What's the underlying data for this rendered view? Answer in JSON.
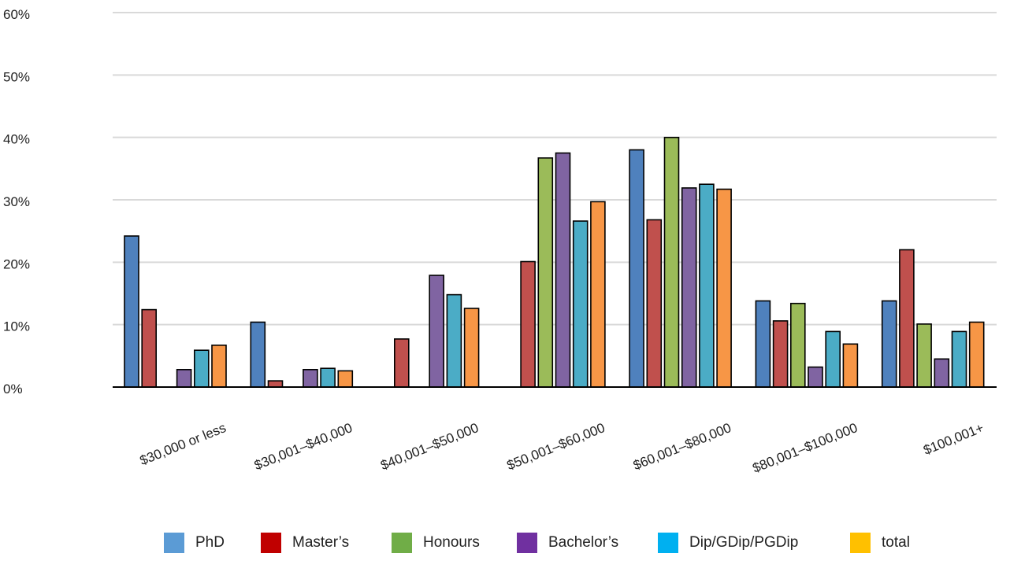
{
  "chart_data": {
    "type": "bar",
    "title": "",
    "xlabel": "",
    "ylabel": "",
    "ylim": [
      0,
      60
    ],
    "yticks": [
      0,
      10,
      20,
      30,
      40,
      50,
      60
    ],
    "ytick_labels": [
      "0%",
      "10%",
      "20%",
      "30%",
      "40%",
      "50%",
      "60%"
    ],
    "grid": true,
    "legend_position": "bottom",
    "categories": [
      "$30,000 or less",
      "$30,001–$40,000",
      "$40,001–$50,000",
      "$50,001–$60,000",
      "$60,001–$80,000",
      "$80,001–$100,000",
      "$100,001+"
    ],
    "series": [
      {
        "name": "PhD",
        "legend_color": "#5B9BD5",
        "bar_color": "#4F81BD",
        "values": [
          24.2,
          10.4,
          0,
          0,
          38,
          13.8,
          13.8
        ]
      },
      {
        "name": "Master’s",
        "legend_color": "#C00000",
        "bar_color": "#C0504D",
        "values": [
          12.4,
          1.0,
          7.7,
          20.1,
          26.8,
          10.6,
          22
        ]
      },
      {
        "name": "Honours",
        "legend_color": "#70AD47",
        "bar_color": "#9BBB59",
        "values": [
          0,
          0,
          0,
          36.7,
          40,
          13.4,
          10.1
        ]
      },
      {
        "name": "Bachelor’s",
        "legend_color": "#7030A0",
        "bar_color": "#8064A2",
        "values": [
          2.8,
          2.8,
          17.9,
          37.5,
          31.9,
          3.2,
          4.5
        ]
      },
      {
        "name": "Dip/GDip/PGDip",
        "legend_color": "#00B0F0",
        "bar_color": "#4BACC6",
        "values": [
          5.9,
          3.0,
          14.8,
          26.6,
          32.5,
          8.9,
          8.9
        ]
      },
      {
        "name": "total",
        "legend_color": "#FFC000",
        "bar_color": "#F79646",
        "values": [
          6.7,
          2.6,
          12.6,
          29.7,
          31.7,
          6.9,
          10.4
        ]
      }
    ]
  }
}
